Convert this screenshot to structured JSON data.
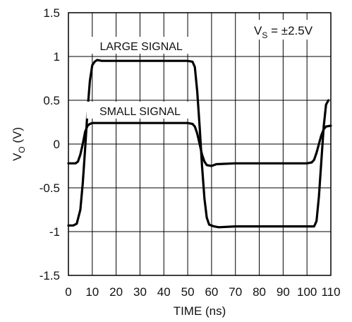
{
  "chart_data": {
    "type": "line",
    "xlabel": "TIME (ns)",
    "ylabel": {
      "main": "V",
      "sub": "O",
      "unit": " (V)"
    },
    "xlim": [
      0,
      110
    ],
    "ylim": [
      -1.5,
      1.5
    ],
    "x_ticks": [
      0,
      10,
      20,
      30,
      40,
      50,
      60,
      70,
      80,
      90,
      100,
      110
    ],
    "y_ticks": [
      1.5,
      1,
      0.5,
      0,
      -0.5,
      -1,
      -1.5
    ],
    "x_tick_labels": [
      "0",
      "10",
      "20",
      "30",
      "40",
      "50",
      "60",
      "70",
      "80",
      "90",
      "100",
      "110"
    ],
    "y_tick_labels": [
      "1.5",
      "1",
      "0.5",
      "0",
      "-0.5",
      "-1",
      "-1.5"
    ],
    "grid": true,
    "supply_annotation": {
      "main": "V",
      "sub": "S",
      "rest": " = ±2.5V"
    },
    "series": [
      {
        "label": "LARGE SIGNAL",
        "points": [
          [
            0,
            -0.93
          ],
          [
            2,
            -0.93
          ],
          [
            3.5,
            -0.91
          ],
          [
            5,
            -0.75
          ],
          [
            6,
            -0.45
          ],
          [
            7,
            -0.05
          ],
          [
            8,
            0.38
          ],
          [
            9,
            0.72
          ],
          [
            10,
            0.9
          ],
          [
            11,
            0.94
          ],
          [
            12,
            0.96
          ],
          [
            14,
            0.95
          ],
          [
            20,
            0.95
          ],
          [
            30,
            0.95
          ],
          [
            40,
            0.95
          ],
          [
            50,
            0.95
          ],
          [
            52,
            0.94
          ],
          [
            53,
            0.88
          ],
          [
            54,
            0.6
          ],
          [
            55,
            0.2
          ],
          [
            56,
            -0.25
          ],
          [
            57,
            -0.62
          ],
          [
            58,
            -0.84
          ],
          [
            59,
            -0.92
          ],
          [
            61,
            -0.94
          ],
          [
            63,
            -0.95
          ],
          [
            70,
            -0.94
          ],
          [
            80,
            -0.94
          ],
          [
            90,
            -0.94
          ],
          [
            100,
            -0.94
          ],
          [
            103,
            -0.94
          ],
          [
            104,
            -0.88
          ],
          [
            105,
            -0.6
          ],
          [
            106,
            -0.2
          ],
          [
            107,
            0.2
          ],
          [
            108,
            0.45
          ],
          [
            109,
            0.5
          ]
        ]
      },
      {
        "label": "SMALL SIGNAL",
        "points": [
          [
            0,
            -0.22
          ],
          [
            3,
            -0.22
          ],
          [
            4,
            -0.2
          ],
          [
            5,
            -0.12
          ],
          [
            6,
            0.0
          ],
          [
            7,
            0.14
          ],
          [
            8,
            0.21
          ],
          [
            9,
            0.23
          ],
          [
            10,
            0.24
          ],
          [
            20,
            0.24
          ],
          [
            30,
            0.24
          ],
          [
            40,
            0.24
          ],
          [
            50,
            0.24
          ],
          [
            52,
            0.23
          ],
          [
            53,
            0.2
          ],
          [
            54,
            0.12
          ],
          [
            55,
            0.0
          ],
          [
            56,
            -0.12
          ],
          [
            57,
            -0.2
          ],
          [
            58,
            -0.24
          ],
          [
            60,
            -0.25
          ],
          [
            62,
            -0.23
          ],
          [
            70,
            -0.22
          ],
          [
            80,
            -0.22
          ],
          [
            90,
            -0.22
          ],
          [
            100,
            -0.22
          ],
          [
            102,
            -0.21
          ],
          [
            103,
            -0.18
          ],
          [
            104,
            -0.1
          ],
          [
            105,
            0.0
          ],
          [
            106,
            0.1
          ],
          [
            107,
            0.17
          ],
          [
            108,
            0.2
          ],
          [
            110,
            0.21
          ]
        ]
      }
    ],
    "annotations": [
      {
        "text": "LARGE SIGNAL",
        "x": 30.5,
        "y": 1.12
      },
      {
        "text": "SMALL SIGNAL",
        "x": 30,
        "y": 0.38
      }
    ]
  }
}
